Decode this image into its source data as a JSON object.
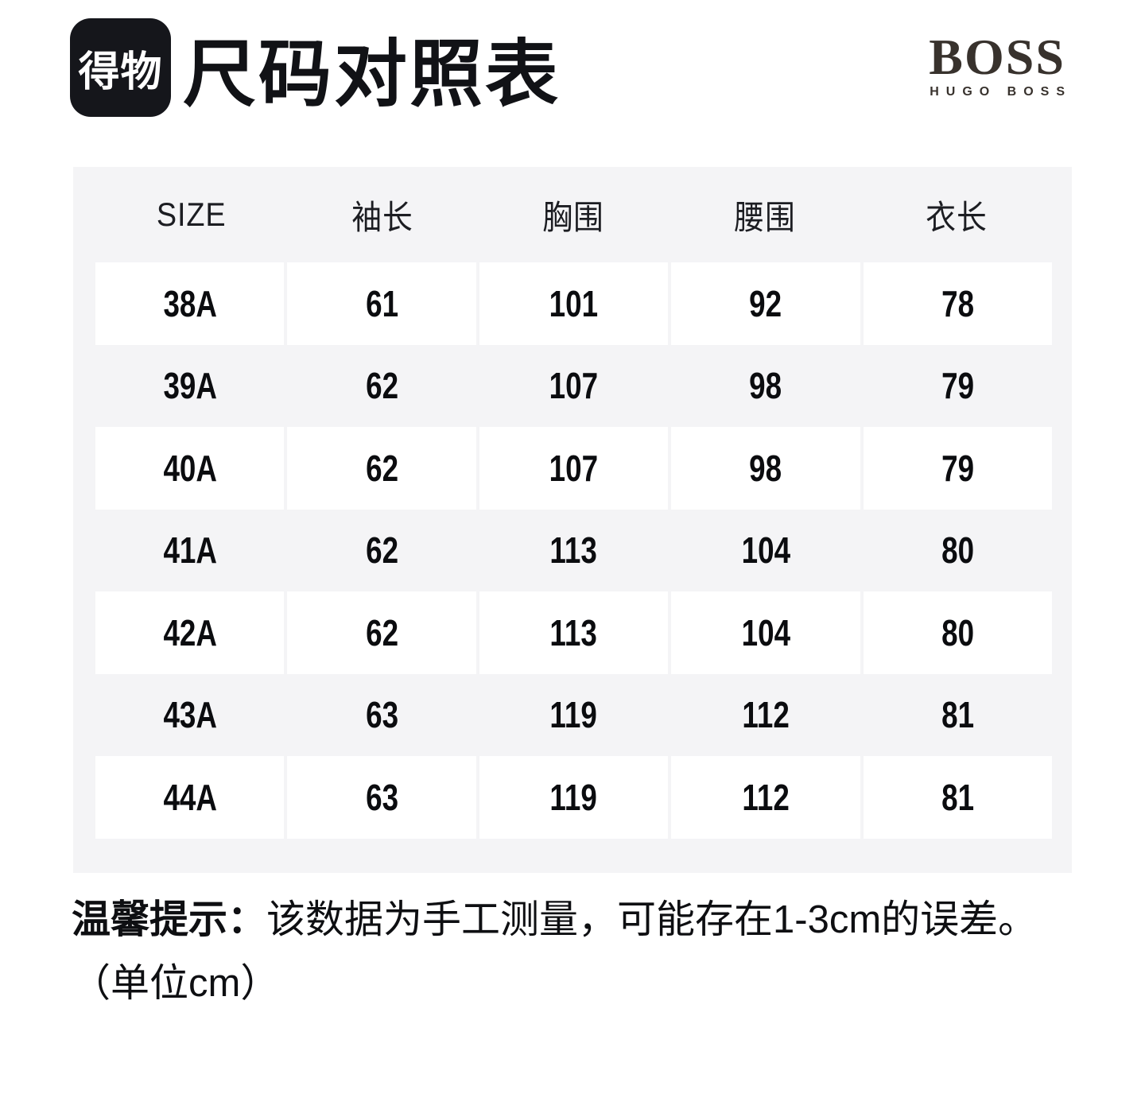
{
  "brand": {
    "dewu_logo_text": "得物",
    "boss_main": "BOSS",
    "boss_sub": "HUGO BOSS"
  },
  "title": "尺码对照表",
  "chart_data": {
    "type": "table",
    "title": "尺码对照表",
    "columns": [
      "SIZE",
      "袖长",
      "胸围",
      "腰围",
      "衣长"
    ],
    "rows": [
      [
        "38A",
        "61",
        "101",
        "92",
        "78"
      ],
      [
        "39A",
        "62",
        "107",
        "98",
        "79"
      ],
      [
        "40A",
        "62",
        "107",
        "98",
        "79"
      ],
      [
        "41A",
        "62",
        "113",
        "104",
        "80"
      ],
      [
        "42A",
        "62",
        "113",
        "104",
        "80"
      ],
      [
        "43A",
        "63",
        "119",
        "112",
        "81"
      ],
      [
        "44A",
        "63",
        "119",
        "112",
        "81"
      ]
    ],
    "unit": "cm",
    "note": "温馨提示：该数据为手工测量，可能存在1-3cm的误差。（单位cm）",
    "layout_hints": {
      "row_stripes": "odd rows white, even rows light gray",
      "header_position": "top"
    }
  },
  "note": {
    "label": "温馨提示：",
    "text": "该数据为手工测量，可能存在1-3cm的误差。",
    "unit": "（单位cm）"
  },
  "colors": {
    "page_bg": "#ffffff",
    "table_bg": "#f4f4f6",
    "row_white": "#ffffff",
    "logo_bg": "#15161b",
    "text_dark": "#101114",
    "boss_logo": "#38322d"
  }
}
